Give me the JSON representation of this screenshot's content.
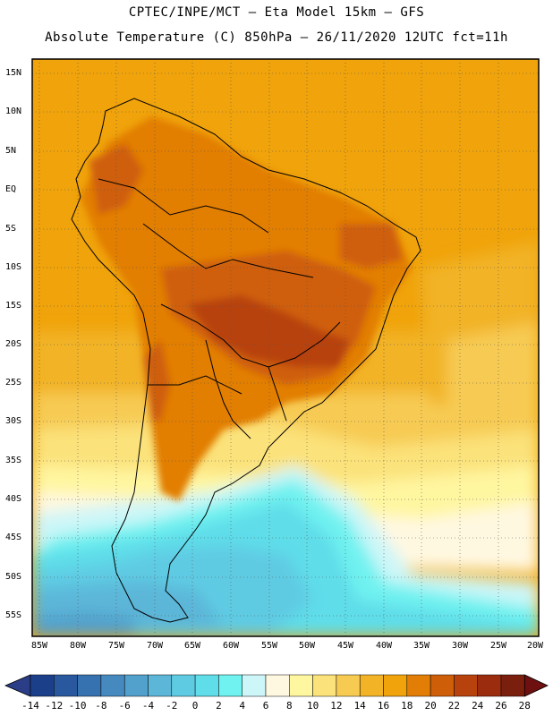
{
  "header": {
    "line1": "CPTEC/INPE/MCT —  Eta Model 15km — GFS",
    "line2": "Absolute Temperature (C) 850hPa — 26/11/2020 12UTC fct=11h"
  },
  "axes": {
    "lat_labels": [
      "15N",
      "10N",
      "5N",
      "EQ",
      "5S",
      "10S",
      "15S",
      "20S",
      "25S",
      "30S",
      "35S",
      "40S",
      "45S",
      "50S",
      "55S"
    ],
    "lon_labels": [
      "85W",
      "80W",
      "75W",
      "70W",
      "65W",
      "60W",
      "55W",
      "50W",
      "45W",
      "40W",
      "35W",
      "30W",
      "25W",
      "20W"
    ]
  },
  "colorbar": {
    "labels": [
      "-14",
      "-12",
      "-10",
      "-8",
      "-6",
      "-4",
      "-2",
      "0",
      "2",
      "4",
      "6",
      "8",
      "10",
      "12",
      "14",
      "16",
      "18",
      "20",
      "22",
      "24",
      "26",
      "28"
    ],
    "colors": [
      "#1c3f8a",
      "#2a589f",
      "#3772b0",
      "#4689bf",
      "#52a0cc",
      "#5bb6d8",
      "#5fcbe3",
      "#5fdde9",
      "#6ff2f0",
      "#cdf6f8",
      "#fff8e1",
      "#fff6a0",
      "#fbe27a",
      "#f7cb52",
      "#f2b327",
      "#f0a30a",
      "#e27e05",
      "#cf5e09",
      "#b8420d",
      "#9c2c0e",
      "#7a1e0e"
    ],
    "under_color": "#2a3d86",
    "over_color": "#6e1010"
  },
  "map": {
    "region": "South America",
    "variable": "850hPa absolute temperature",
    "colors": {
      "ocean_warm": "#f2b327",
      "hot": "#cf6b10",
      "very_hot": "#b84a12",
      "cold": "#5fdde9",
      "coldest": "#4fb8d6",
      "border": "#000000"
    }
  }
}
